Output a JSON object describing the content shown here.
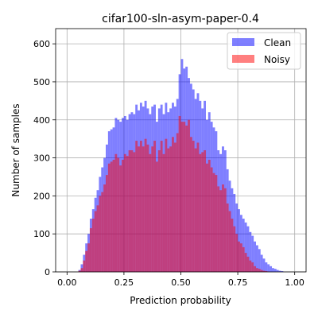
{
  "chart_data": {
    "type": "bar",
    "title": "cifar100-sln-asym-paper-0.4",
    "xlabel": "Prediction probability",
    "ylabel": "Number of samples",
    "xlim": [
      -0.05,
      1.05
    ],
    "ylim": [
      0,
      640
    ],
    "xticks": [
      0.0,
      0.25,
      0.5,
      0.75,
      1.0
    ],
    "xtick_labels": [
      "0.00",
      "0.25",
      "0.50",
      "0.75",
      "1.00"
    ],
    "yticks": [
      0,
      100,
      200,
      300,
      400,
      500,
      600
    ],
    "ytick_labels": [
      "0",
      "100",
      "200",
      "300",
      "400",
      "500",
      "600"
    ],
    "grid": true,
    "legend_position": "top-right",
    "bin_width": 0.01,
    "bin_start": 0.0,
    "series": [
      {
        "name": "Clean",
        "color": "#0000ff",
        "alpha": 0.5,
        "values": [
          0,
          0,
          0,
          0,
          0,
          5,
          20,
          45,
          75,
          100,
          140,
          165,
          195,
          215,
          250,
          275,
          300,
          335,
          370,
          375,
          380,
          405,
          400,
          395,
          405,
          410,
          400,
          415,
          420,
          415,
          440,
          425,
          445,
          435,
          450,
          430,
          415,
          435,
          440,
          395,
          430,
          440,
          415,
          445,
          420,
          430,
          445,
          435,
          455,
          520,
          560,
          535,
          540,
          510,
          495,
          480,
          455,
          470,
          450,
          430,
          450,
          400,
          420,
          395,
          380,
          370,
          320,
          310,
          330,
          320,
          270,
          240,
          220,
          205,
          180,
          165,
          150,
          140,
          130,
          120,
          105,
          95,
          80,
          70,
          60,
          45,
          35,
          25,
          20,
          15,
          10,
          8,
          5,
          3,
          2,
          0,
          0,
          0,
          0,
          0
        ]
      },
      {
        "name": "Noisy",
        "color": "#ff0000",
        "alpha": 0.5,
        "values": [
          0,
          0,
          0,
          0,
          0,
          3,
          10,
          30,
          55,
          75,
          115,
          140,
          160,
          175,
          200,
          210,
          230,
          255,
          285,
          290,
          295,
          310,
          300,
          280,
          295,
          310,
          305,
          320,
          320,
          315,
          345,
          330,
          345,
          330,
          350,
          335,
          310,
          330,
          345,
          290,
          320,
          345,
          310,
          350,
          325,
          330,
          355,
          340,
          365,
          410,
          395,
          395,
          385,
          400,
          355,
          345,
          325,
          340,
          310,
          315,
          320,
          285,
          295,
          275,
          260,
          255,
          225,
          215,
          230,
          220,
          180,
          160,
          140,
          120,
          100,
          80,
          75,
          65,
          50,
          40,
          30,
          25,
          15,
          10,
          8,
          5,
          3,
          2,
          1,
          0,
          0,
          0,
          0,
          0,
          0,
          0,
          0,
          0,
          0,
          0
        ]
      }
    ]
  }
}
